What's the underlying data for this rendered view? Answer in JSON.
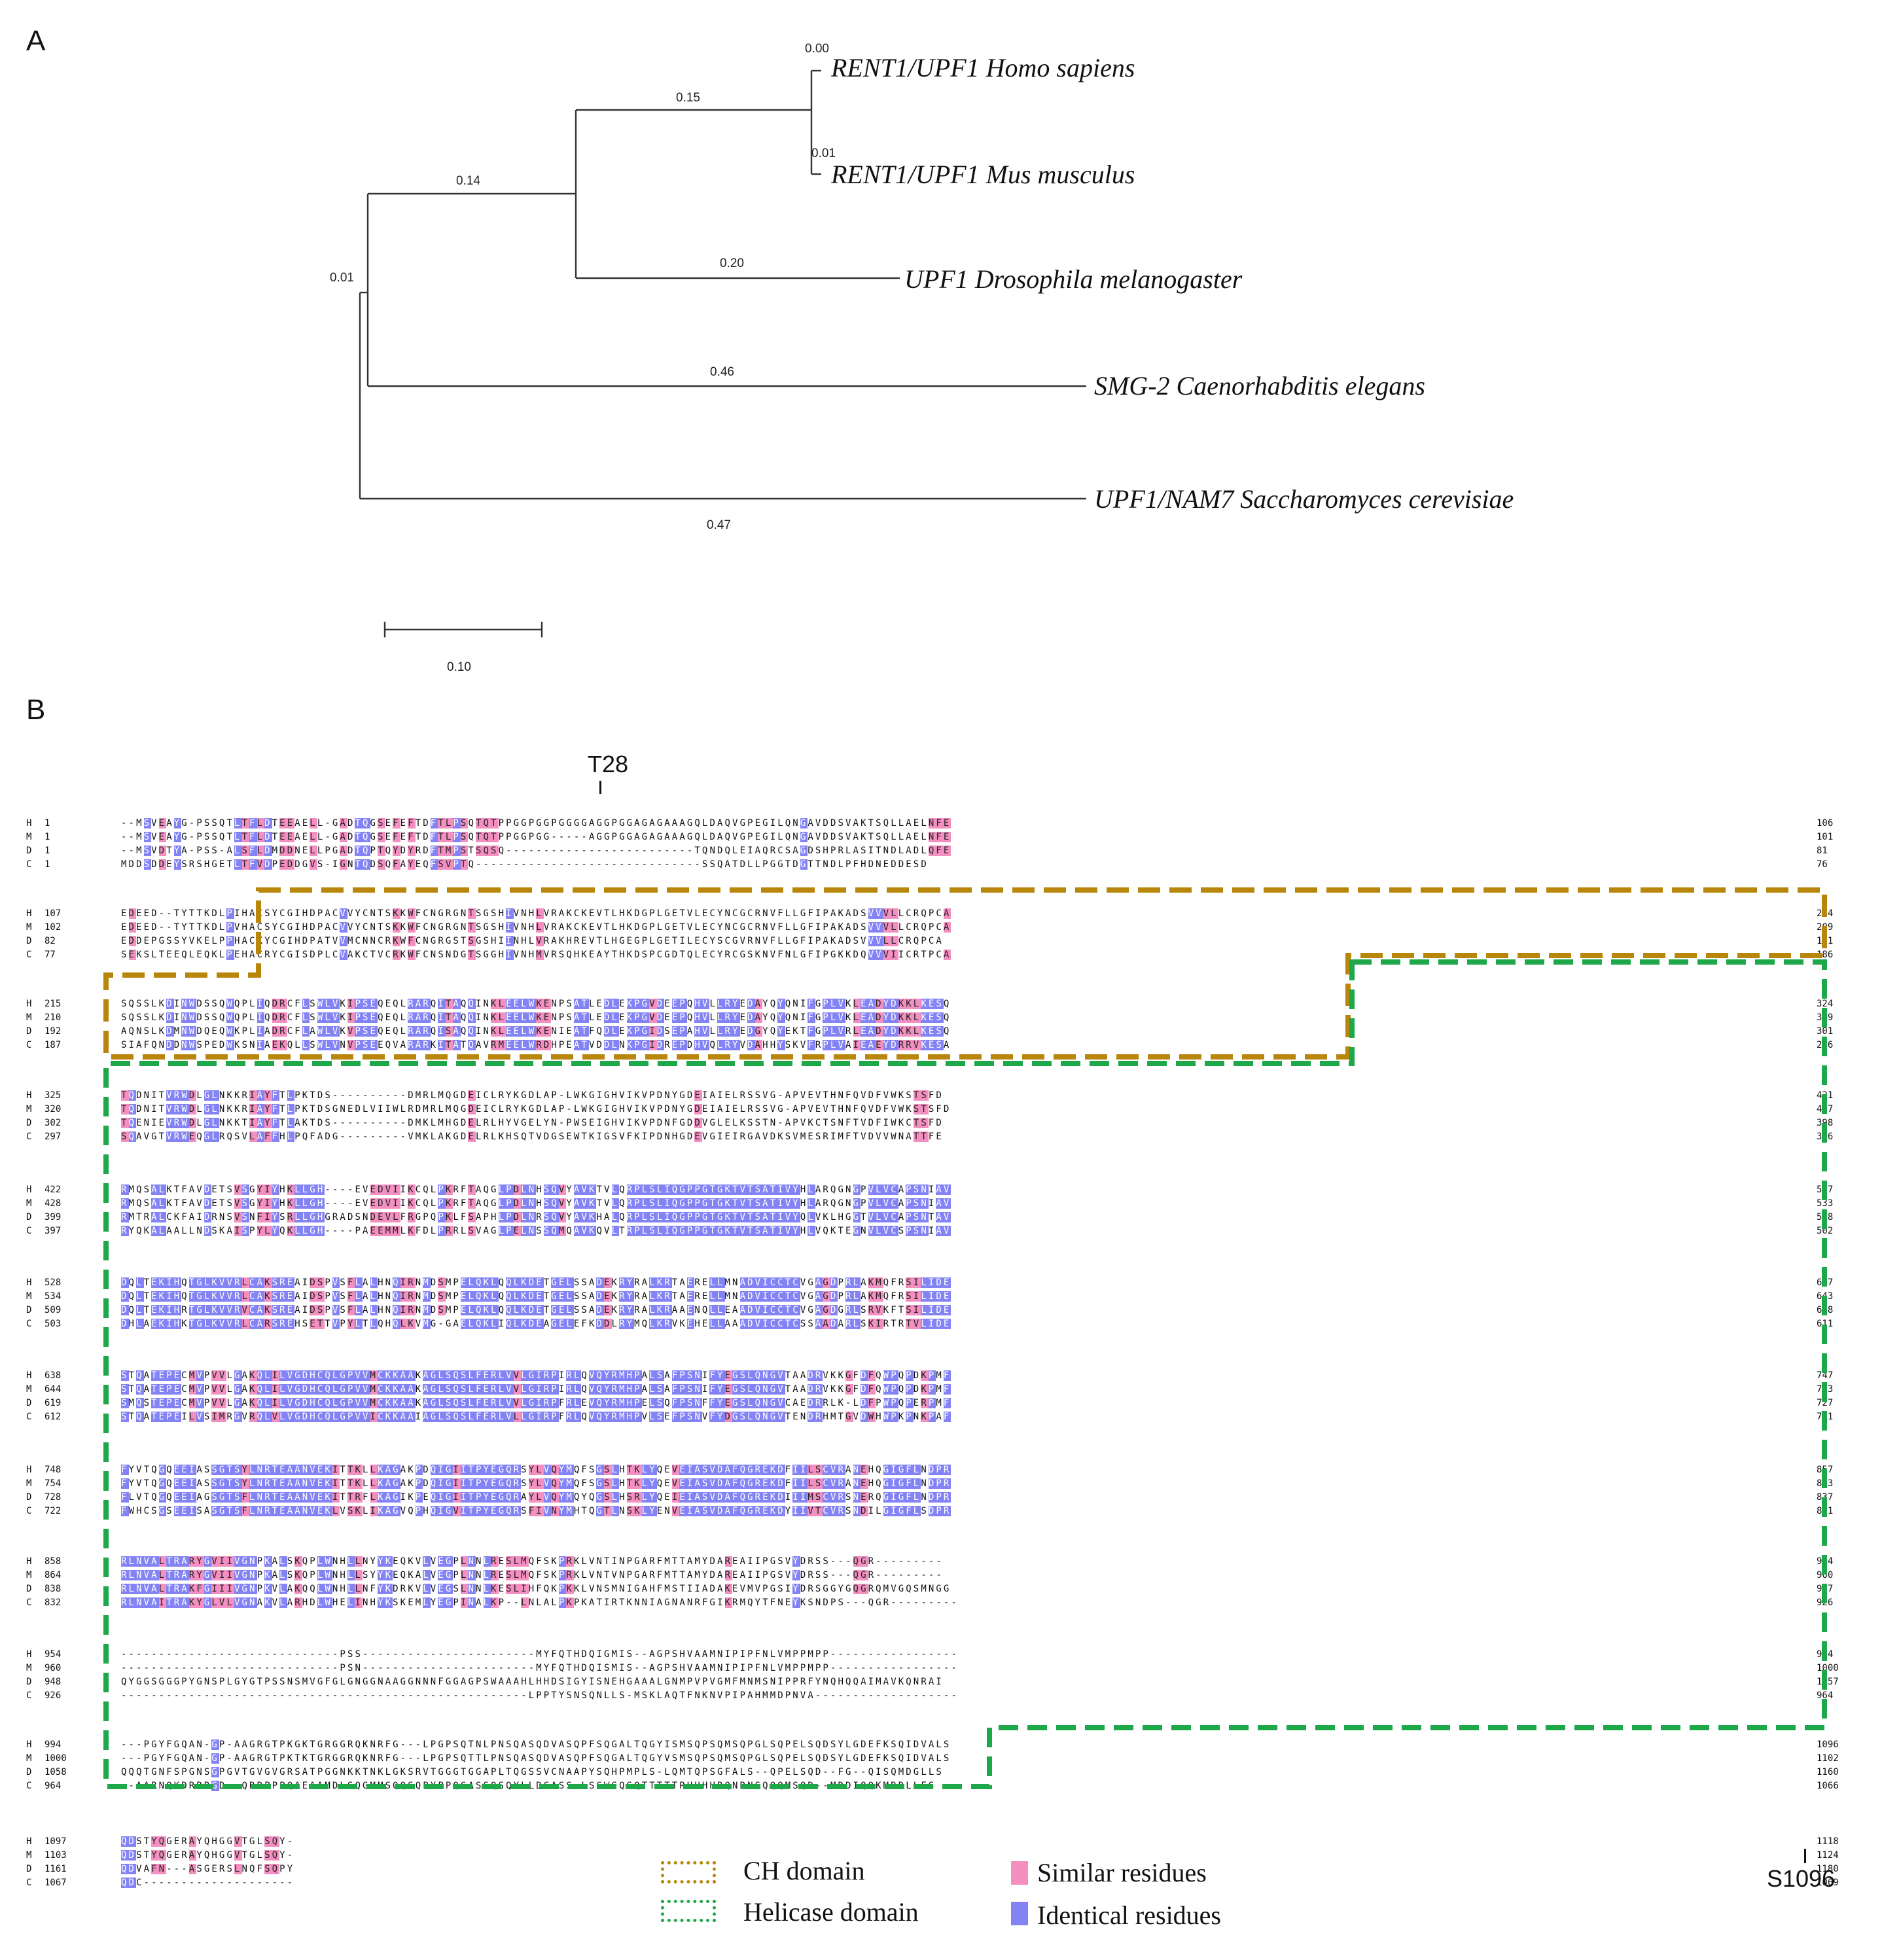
{
  "panel_a": {
    "label": "A",
    "taxa": [
      {
        "name": "RENT1/UPF1 Homo sapiens",
        "branch_length": "0.00"
      },
      {
        "name": "RENT1/UPF1 Mus musculus",
        "branch_length": "0.01"
      },
      {
        "name": "UPF1 Drosophila melanogaster",
        "branch_length": "0.20"
      },
      {
        "name": "SMG-2 Caenorhabditis elegans",
        "branch_length": "0.46"
      },
      {
        "name": "UPF1/NAM7 Saccharomyces cerevisiae",
        "branch_length": "0.47"
      }
    ],
    "internal_branch_lengths": {
      "human_mouse_clade": "0.15",
      "animal_clade": "0.14",
      "root_split": "0.01"
    },
    "scale_bar": "0.10"
  },
  "panel_b": {
    "label": "B",
    "markers": {
      "t28": "T28",
      "s1096": "S1096"
    },
    "blocks": [
      {
        "rows": [
          {
            "sp": "H",
            "start": "1",
            "seq": "--MSVEAYG-PSSQTLTFLDTEEAELL-GADTQGSEFEFTDFTLPSQTQTPPGGPGGPGGGGAGGPGGAGAGAAAGQLDAQVGPEGILQNGAVDDSVAKTSQLLAELNFE",
            "end": "106"
          },
          {
            "sp": "M",
            "start": "1",
            "seq": "--MSVEAYG-PSSQTLTFLDTEEAELL-GADTQGSEFEFTDFTLPSQTQTPPGGPGG-----AGGPGGAGAGAAAGQLDAQVGPEGILQNGAVDDSVAKTSQLLAELNFE",
            "end": "101"
          },
          {
            "sp": "D",
            "start": "1",
            "seq": "--MSVDTYA-PSS-ALSFLDMDDNELLPGADTQPTQYDYRDFTMPSTSQSQ-------------------------TQNDQLEIAQRCSAGDSHPRLASITNDLADLQFE",
            "end": "81"
          },
          {
            "sp": "C",
            "start": "1",
            "seq": "MDDSDDEYSRSHGETLTFVDPEDDGVS-IGNTQDSQFAYEQFSVPTQ------------------------------SSQATDLLPGGTDGTTNDLPFHDNEDDESD",
            "end": "76"
          }
        ]
      },
      {
        "rows": [
          {
            "sp": "H",
            "start": "107",
            "seq": "EDEED--TYTTKDLPIHACSYCGIHDPACVVYCNTSKKWFCNGRGNTSGSHIVNHLVRAKCKEVTLHKDGPLGETVLECYNCGCRNVFLLGFIPAKADSVVVLLCRQPCA",
            "end": "214"
          },
          {
            "sp": "M",
            "start": "102",
            "seq": "EDEED--TYTTKDLPVHACSYCGIHDPACVVYCNTSKKWFCNGRGNTSGSHIVNHLVRAKCKEVTLHKDGPLGETVLECYNCGCRNVFLLGFIPAKADSVVVLLCRQPCA",
            "end": "209"
          },
          {
            "sp": "D",
            "start": "82",
            "seq": "EDDEPGSSYVKELPPHACKYCGIHDPATVVMCNNCRKWFCNGRGSTSGSHIINHLVRAKHREVTLHGEGPLGETILECYSCGVRNVFLLGFIPAKADSVVVLLCRQPCA",
            "end": "191"
          },
          {
            "sp": "C",
            "start": "77",
            "seq": "SEKSLTEEQLEQKLPEHACRYCGISDPLCVAKCTVCRKWFCNSNDGTSGGHIVNHMVRSQHKEAYTHKDSPCGDTQLECYRCGSKNVFNLGFIPGKKDQVVVIICRTPCA",
            "end": "186"
          }
        ]
      },
      {
        "rows": [
          {
            "sp": "H",
            "start": "215",
            "seq": "SQSSLKDINWDSSQWQPLIQDRCFLSWLVKIPSEQEQLRARQITAQQINKLEELWKENPSATLEDLEKPGVDEEPQHVLLRYEDAYQYQNIFGPLVKLEADYDKKLKESQ",
            "end": "324"
          },
          {
            "sp": "M",
            "start": "210",
            "seq": "SQSSLKDINWDSSQWQPLIQDRCFLSWLVKIPSEQEQLRARQITAQQINKLEELWKENPSATLEDLEKPGVDEEPQHVLLRYEDAYQYQNIFGPLVKLEADYDKKLKESQ",
            "end": "319"
          },
          {
            "sp": "D",
            "start": "192",
            "seq": "AQNSLKDMNWDQEQWKPLIADRCFLAWLVKVPSEQEQLRARQISAQQINKLEELWKENIEATFQDLEKPGIDSEPAHVLLRYEDGYQYEKTFGPLVRLEADYDKKLKESQ",
            "end": "301"
          },
          {
            "sp": "C",
            "start": "187",
            "seq": "SIAFQNDDNWSPEDWKSNIAEKQLLSWLVNVPSEEQVARARKITATQAVRMEELWRDHPEATVDDLNKPGIDREPDHVQLRYVDAHHYSKVFRPLVAIEAEYDRRVKESA",
            "end": "296"
          }
        ]
      },
      {
        "rows": [
          {
            "sp": "H",
            "start": "325",
            "seq": "TQDNITVRWDLGLNKKRIAYFTLPKTDS----------DMRLMQGDEICLRYKGDLAP-LWKGIGHVIKVPDNYGDEIAIELRSSVG-APVEVTHNFQVDFVWKSTSFD",
            "end": "421"
          },
          {
            "sp": "M",
            "start": "320",
            "seq": "TQDNITVRWDLGLNKKRIAYFTLPKTDSGNEDLVIIWLRDMRLMQGDEICLRYKGDLAP-LWKGIGHVIKVPDNYGDEIAIELRSSVG-APVEVTHNFQVDFVWKSTSFD",
            "end": "427"
          },
          {
            "sp": "D",
            "start": "302",
            "seq": "TQENIEVRWDLGLNKKTIAYFTLAKTDS----------DMKLMHGDELRLHYVGELYN-PWSEIGHVIKVPDNFGDDVGLELKSSTN-APVKCTSNFTVDFIWKCTSFD",
            "end": "398"
          },
          {
            "sp": "C",
            "start": "297",
            "seq": "SQAVGTVRWEQGLRQSVLAFFHLPQFADG---------VMKLAKGDELRLKHSQTVDGSEWTKIGSVFKIPDNHGDEVGIEIRGAVDKSVMESRIMFTVDVVWNATTFE",
            "end": "396"
          }
        ]
      },
      {
        "rows": [
          {
            "sp": "H",
            "start": "422",
            "seq": "RMQSALKTFAVDETSVSGYIYHKLLGH----EVEDVIIKCQLPKRFTAQGLPDLNHSQVYAVKTVLQRPLSLIQGPPGTGKTVTSATIVYHLARQGNGPVLVCAPSNIAV",
            "end": "527"
          },
          {
            "sp": "M",
            "start": "428",
            "seq": "RMQSALKTFAVDETSVSGYIYHKLLGH----EVEDVIIKCQLPKRFTAQGLPDLNHSQVYAVKTVLQRPLSLIQGPPGTGKTVTSATIVYHLARQGNGPVLVCAPSNIAV",
            "end": "533"
          },
          {
            "sp": "D",
            "start": "399",
            "seq": "RMTRALCKFAIDRNSVSNFIYSRLLGHGRADSNDEVLFRGPQPKLFSAPHLPDLNRSQVYAVKHALQRPLSLIQGPPGTGKTVTSATIVYQLVKLHGGTVLVCAPSNTAV",
            "end": "508"
          },
          {
            "sp": "C",
            "start": "397",
            "seq": "RYQKALAALLNDSKAISPYLYQKLLGH----PAEEMMLKFDLPRRLSVAGLPELNSSQMQAVKQVLTRPLSLIQGPPGTGKTVTSATIVYHLVQKTEGNVLVCSPSNIAV",
            "end": "502"
          }
        ]
      },
      {
        "rows": [
          {
            "sp": "H",
            "start": "528",
            "seq": "DQLTEKIHQTGLKVVRLCAKSREAIDSPVSFLALHNQIRNMDSMPELQKLQQLKDETGELSSADEKRYRALKRTAERELLMNADVICCTCVGAGDPRLAKMQFRSILIDE",
            "end": "637"
          },
          {
            "sp": "M",
            "start": "534",
            "seq": "DQLTEKIHQTGLKVVRLCAKSREAIDSPVSFLALHNQIRNMDSMPELQKLQQLKDETGELSSADEKRYRALKRTAERELLMNADVICCTCVGAGDPRLAKMQFRSILIDE",
            "end": "643"
          },
          {
            "sp": "D",
            "start": "509",
            "seq": "DQLTEKIHRTGLKVVRVCAKSREAIDSPVSFLALHNQIRNMDSMPELQKLQQLKDETGELSSADEKRYRALKRAAENQLLEAADVICCTCVGAGDGRLSRVKFTSILIDE",
            "end": "618"
          },
          {
            "sp": "C",
            "start": "503",
            "seq": "DHLAEKIHKTGLKVVRLCARSREHSETTVPYLTLQHQLKVMG-GAELQKLIQLKDEAGELEFKDDLRYMQLKRVKEHELLAAADVICCTCSSAADARLSKIRTRTVLIDE",
            "end": "611"
          }
        ]
      },
      {
        "rows": [
          {
            "sp": "H",
            "start": "638",
            "seq": "STQATEPECMVPVVLGAKQLILVGDHCQLGPVVMCKKAAKAGLSQSLFERLVVLGIRPIRLQVQYRMHPALSAFPSNIFYEGSLQNGVTAADRVKKGFDFQWPQPDKPMF",
            "end": "747"
          },
          {
            "sp": "M",
            "start": "644",
            "seq": "STQATEPECMVPVVLGAKQLILVGDHCQLGPVVMCKKAAKAGLSQSLFERLVVLGIRPIRLQVQYRMHPALSAFPSNIFYEGSLQNGVTAADRVKKGFDFQWPQPDKPMF",
            "end": "753"
          },
          {
            "sp": "D",
            "start": "619",
            "seq": "SMQSTEPECMVPVVLGAKQLILVGDHCQLGPVVMCKKAAKAGLSQSLFERLVVLGIRPFRLEVQYRMHPELSQFPSNFFYEGSLQNGVCAEDRRLK-LDFPWPQPERPMF",
            "end": "727"
          },
          {
            "sp": "C",
            "start": "612",
            "seq": "STQATEPEILVSIMRGVRQLVLVGDHCQLGPVVICKKAAIAGLSQSLFERLVLLGIRPFRLQVQYRMHPVLSEFPSNVFYDGSLQNGVTENDRHMTGVDWHWPKPNKPAF",
            "end": "721"
          }
        ]
      },
      {
        "rows": [
          {
            "sp": "H",
            "start": "748",
            "seq": "FYVTQGQEEIASSGTSYLNRTEAANVEKITTKLLKAGAKPDQIGIITPYEGQRSYLVQYMQFSGSLHTKLYQEVEIASVDAFQGREKDFIILSCVRANEHQGIGFLNDPR",
            "end": "857"
          },
          {
            "sp": "M",
            "start": "754",
            "seq": "FYVTQGQEEIASSGTSYLNRTEAANVEKITTKLLKAGAKPDQIGIITPYEGQRSYLVQYMQFSGSLHTKLYQEVEIASVDAFQGREKDFIILSCVRANEHQGIGFLNDPR",
            "end": "863"
          },
          {
            "sp": "D",
            "start": "728",
            "seq": "FLVTQGQEEIAGSGTSFLNRTEAANVEKITTRFLKAGIKPEQIGIITPYEGQRAYLVQYMQYQGSLHSRLYQEIEIASVDAFQGREKDIIIMSCVRSNERQGIGFLNDPR",
            "end": "837"
          },
          {
            "sp": "C",
            "start": "722",
            "seq": "FWHCSGSEEISASGTSFLNRTEAANVEKLVSKLIKAGVQPHQIGVITPYEGQRSFIVNYMHTQGTLNSKLYENVEIASVDAFQGREKDYIIVTCVRSNDILGIGFLSDPR",
            "end": "831"
          }
        ]
      },
      {
        "rows": [
          {
            "sp": "H",
            "start": "858",
            "seq": "RLNVALTRARYGVIIVGNPKALSKQPLWNHLLNYYKEQKVLVEGPLNNLRESLMQFSKPRKLVNTINPGARFMTTAMYDAREAIIPGSVYDRSS---QGR---------",
            "end": "954"
          },
          {
            "sp": "M",
            "start": "864",
            "seq": "RLNVALTRARYGVIIVGNPKALSKQPLWNHLLSYYKEQKALVEGPLNNLRESLMQFSKPRKLVNTVNPGARFMTTAMYDAREAIIPGSVYDRSS---QGR---------",
            "end": "960"
          },
          {
            "sp": "D",
            "start": "838",
            "seq": "RLNVALTRAKFGIIIVGNPKVLAKQQLWNHLLNFYKDRKVLVEGSLNNLKESLIHFQKPKKLVNSMNIGAHFMSTIIADAKEVMVPGSIYDRSGGYGQGRQMVGQSMNGG",
            "end": "947"
          },
          {
            "sp": "C",
            "start": "832",
            "seq": "RLNVAITRAKYGLVLVGNAKVLARHDLWHELINHYKSKEMLYEGPINALKP--LNLALPKPKATIRTKNNIAGNANRFGIKRMQYTFNEYKSNDPS---QGR---------",
            "end": "926"
          }
        ]
      },
      {
        "rows": [
          {
            "sp": "H",
            "start": "954",
            "seq": "-----------------------------PSS-----------------------MYFQTHDQIGMIS--AGPSHVAAMNIPIPFNLVMPPMPP-----------------",
            "end": "994"
          },
          {
            "sp": "M",
            "start": "960",
            "seq": "-----------------------------PSN-----------------------MYFQTHDQISMIS--AGPSHVAAMNIPIPFNLVMPPMPP-----------------",
            "end": "1000"
          },
          {
            "sp": "D",
            "start": "948",
            "seq": "QYGGSGGGPYGNSPLGYGTPSSNSMVGFGLGNGGNAAGGNNNFGGAGPSWAAAHLHHDSIGYISNEHGAAALGNMPVPVGMFMNMSNIPPRFYNQHQQAIMAVKQNRAI",
            "end": "1057"
          },
          {
            "sp": "C",
            "start": "926",
            "seq": "------------------------------------------------------LPPTYSNSQNLLS-MSKLAQTFNKNVPIPAHMMDPNVA-------------------",
            "end": "964"
          }
        ]
      },
      {
        "rows": [
          {
            "sp": "H",
            "start": "994",
            "seq": "---PGYFGQAN-GP-AAGRGTPKGKTGRGGRQKNRFG---LPGPSQTNLPNSQASQDVASQPFSQGALTQGYISMSQPSQMSQPGLSQPELSQDSYLGDEFKSQIDVALS",
            "end": "1096"
          },
          {
            "sp": "M",
            "start": "1000",
            "seq": "---PGYFGQAN-GP-AAGRGTPKTKTGRGGRQKNRFG---LPGPSQTTLPNSQASQDVASQPFSQGALTQGYVSMSQPSQMSQPGLSQPELSQDSYLGDEFKSQIDVALS",
            "end": "1102"
          },
          {
            "sp": "D",
            "start": "1058",
            "seq": "QQQTGNFSPGNSGPGVTGVGVGRSATPGGNKKTNKLGKSRVTGGGTGGAPLTQGSSVCNAAPYSQHPMPLS-LQMTQPSGFALS--QPELSQD--FG--QISQMDGLLS",
            "end": "1160"
          },
          {
            "sp": "C",
            "start": "964",
            "seq": "--AARNQKDRRRGD--QRRPPPQAEAAMDLSQGMMSQQSQPYPPQGASSQSQYLLDGASS-LSGWSQSQTTTTTRHHHHRQNRNSQQQMSQD--MDDIQQKMDDLLFS",
            "end": "1066"
          }
        ]
      },
      {
        "rows": [
          {
            "sp": "H",
            "start": "1097",
            "seq": "QDSTYQGERAYQHGGVTGLSQY-",
            "end": "1118"
          },
          {
            "sp": "M",
            "start": "1103",
            "seq": "QDSTYQGERAYQHGGVTGLSQY-",
            "end": "1124"
          },
          {
            "sp": "D",
            "start": "1161",
            "seq": "QDVAFN---ASGERSLNQFSQPY",
            "end": "1180"
          },
          {
            "sp": "C",
            "start": "1067",
            "seq": "QDC--------------------",
            "end": "1069"
          }
        ]
      }
    ],
    "legend": {
      "ch_domain": "CH domain",
      "helicase_domain": "Helicase domain",
      "similar": "Similar residues",
      "identical": "Identical residues"
    },
    "colors": {
      "identical": "#8383f5",
      "similar": "#f48fc1",
      "ch_domain_box": "#b8860b",
      "helicase_domain_box": "#1fa84a"
    }
  }
}
